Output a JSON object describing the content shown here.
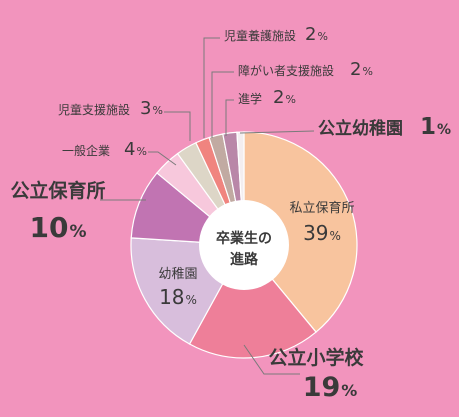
{
  "colors": {
    "background": "#f294bd",
    "text": "#3a3a3a",
    "leader": "#7a7a7a"
  },
  "chart_data": {
    "type": "pie",
    "variant": "donut",
    "center_label": [
      "卒業生の",
      "進路"
    ],
    "slices": [
      {
        "name": "私立保育所",
        "value": 39,
        "color": "#f8c49e"
      },
      {
        "name": "公立小学校",
        "value": 19,
        "color": "#ee7f99"
      },
      {
        "name": "幼稚園",
        "value": 18,
        "color": "#d8bedc"
      },
      {
        "name": "公立保育所",
        "value": 10,
        "color": "#c174b2"
      },
      {
        "name": "一般企業",
        "value": 4,
        "color": "#f7c8dc"
      },
      {
        "name": "児童支援施設",
        "value": 3,
        "color": "#ddd6c7"
      },
      {
        "name": "児童養護施設",
        "value": 2,
        "color": "#f0847f"
      },
      {
        "name": "障がい者支援施設",
        "value": 2,
        "color": "#c1aaa2"
      },
      {
        "name": "進学",
        "value": 2,
        "color": "#b987a8"
      },
      {
        "name": "公立幼稚園",
        "value": 1,
        "color": "#f3eef0"
      }
    ],
    "percent_symbol": "%"
  }
}
